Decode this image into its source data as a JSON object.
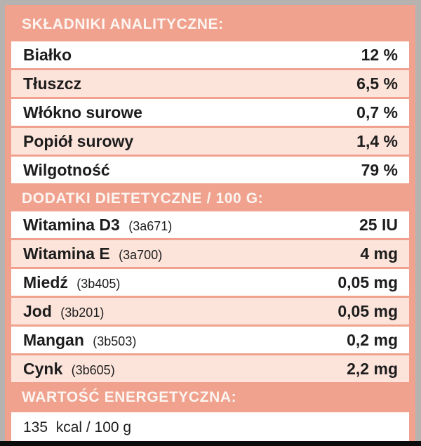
{
  "colors": {
    "panel_salmon": "#f0a28e",
    "row_white": "#ffffff",
    "row_pink": "#fce4db",
    "header_text": "#fcf5f1",
    "body_text": "#1d1d1d",
    "frame_gray": "#b6b2af",
    "bottom_bar_black": "#0c0c0c"
  },
  "sections": [
    {
      "title": "SKŁADNIKI ANALITYCZNE:",
      "rows": [
        {
          "label": "Białko",
          "code": "",
          "value": "12 %"
        },
        {
          "label": "Tłuszcz",
          "code": "",
          "value": "6,5 %"
        },
        {
          "label": "Włókno surowe",
          "code": "",
          "value": "0,7 %"
        },
        {
          "label": "Popiół surowy",
          "code": "",
          "value": "1,4 %"
        },
        {
          "label": "Wilgotność",
          "code": "",
          "value": "79 %"
        }
      ]
    },
    {
      "title": "DODATKI DIETETYCZNE / 100 G:",
      "rows": [
        {
          "label": "Witamina D3",
          "code": "(3a671)",
          "value": "25 IU"
        },
        {
          "label": "Witamina E",
          "code": "(3a700)",
          "value": "4 mg"
        },
        {
          "label": "Miedź",
          "code": "(3b405)",
          "value": "0,05 mg"
        },
        {
          "label": "Jod",
          "code": "(3b201)",
          "value": "0,05 mg"
        },
        {
          "label": "Mangan",
          "code": "(3b503)",
          "value": "0,2 mg"
        },
        {
          "label": "Cynk",
          "code": "(3b605)",
          "value": "2,2 mg"
        }
      ]
    },
    {
      "title": "WARTOŚĆ ENERGETYCZNA:",
      "energy_value": "135  kcal / 100 g"
    }
  ]
}
